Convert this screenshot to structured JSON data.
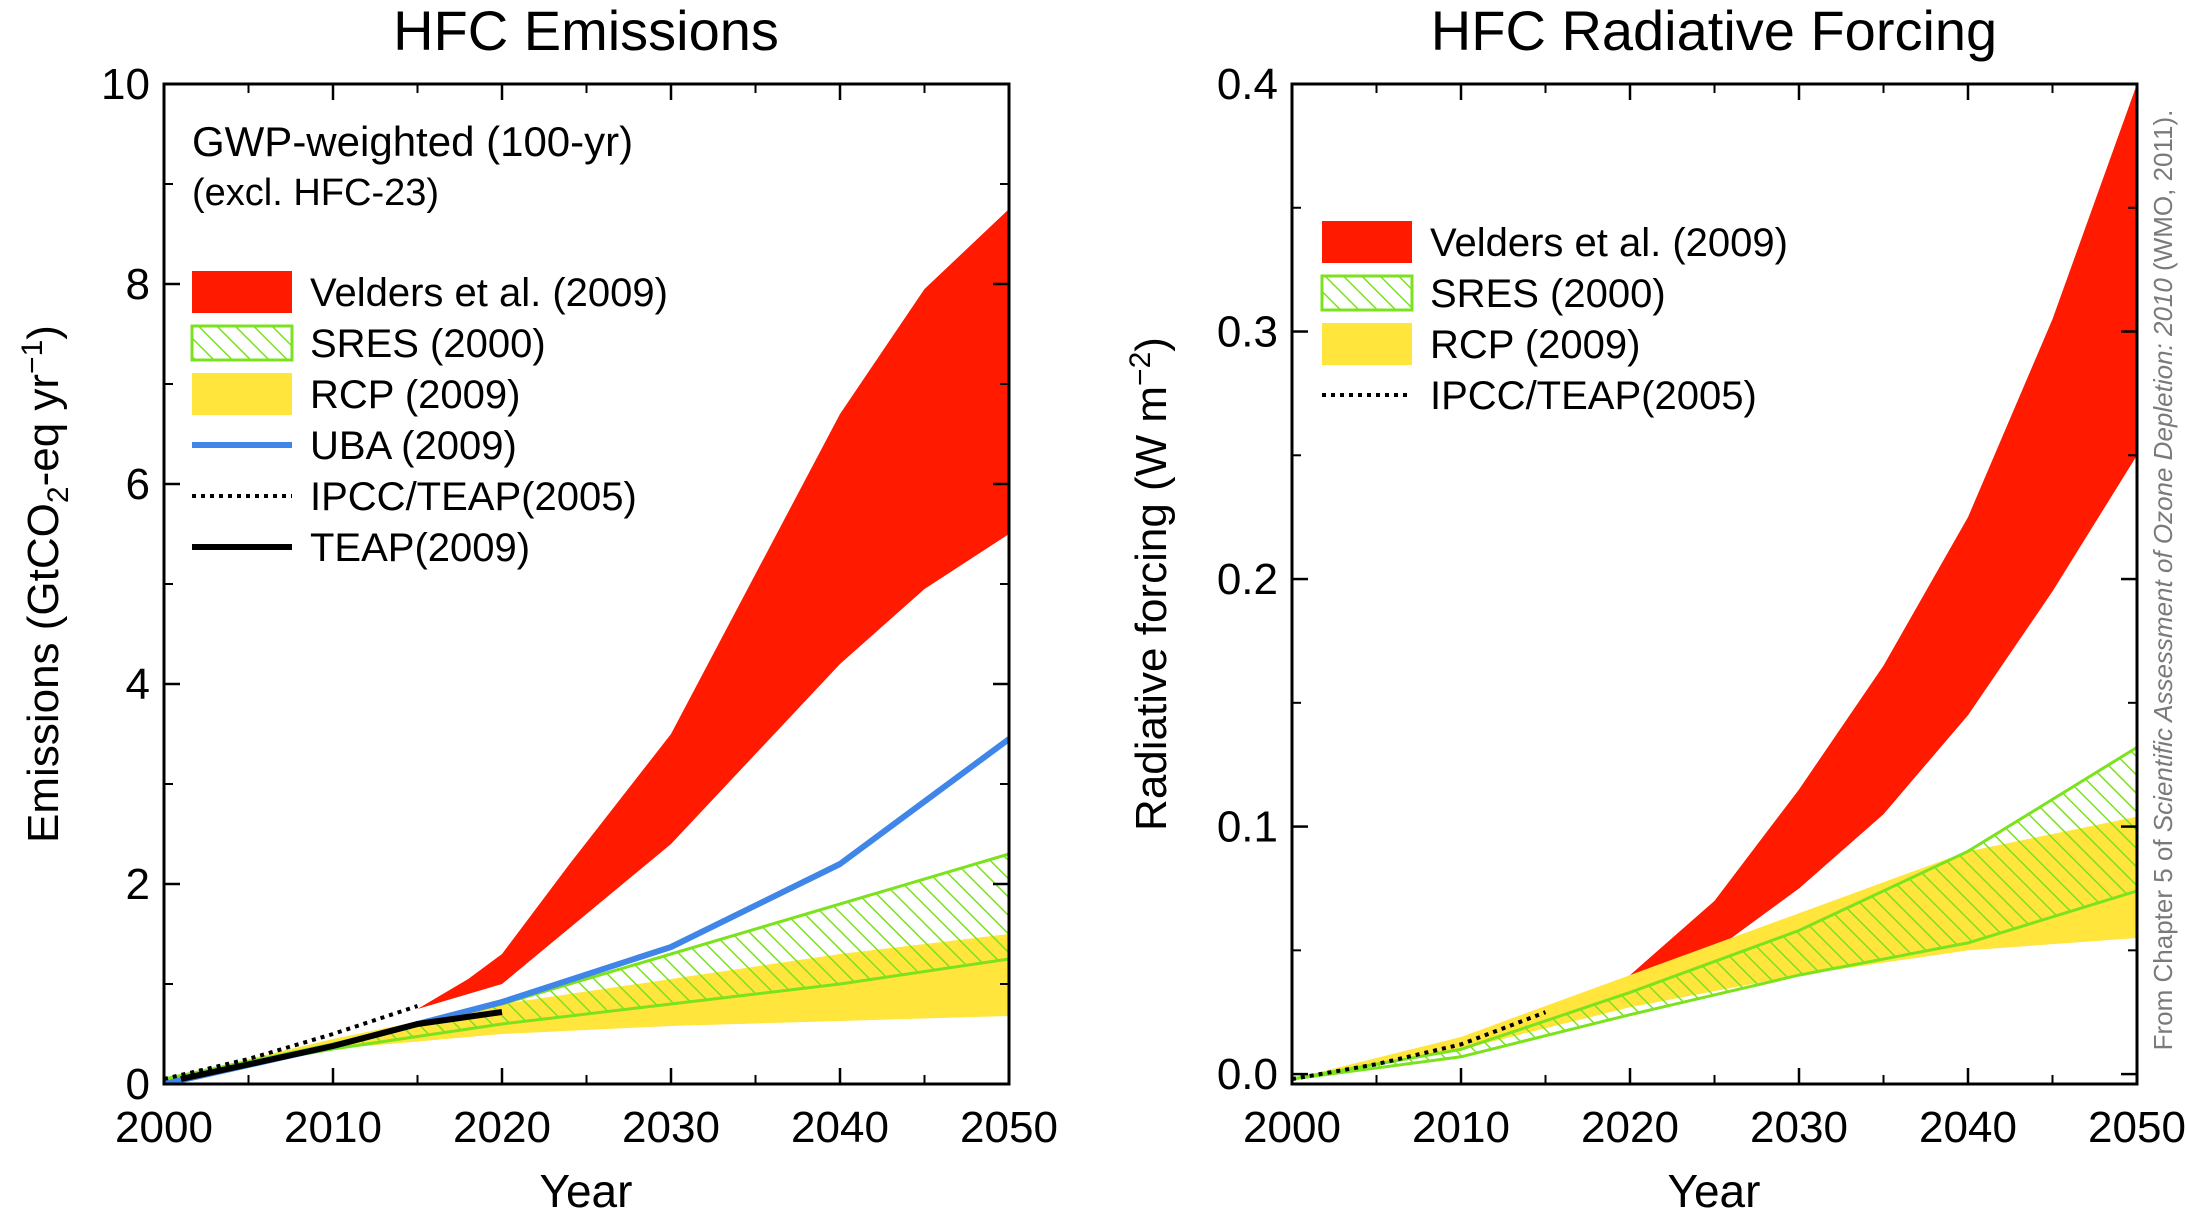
{
  "credit": {
    "prefix": "From Chapter 5 of ",
    "italic": "Scientific Assessment of Ozone Depletion: 2010",
    "suffix": " (WMO, 2011)."
  },
  "colors": {
    "velders": "#ff1a00",
    "sres": "#7be21e",
    "rcp": "#ffe53c",
    "uba": "#3f86e8",
    "ipcc": "#000000",
    "teap": "#000000"
  },
  "chart_data": [
    {
      "type": "area",
      "title": "HFC Emissions",
      "annotation": [
        "GWP-weighted (100-yr)",
        "(excl. HFC-23)"
      ],
      "xlabel": "Year",
      "ylabel": {
        "pre": "Emissions (GtCO",
        "sub": "2",
        "mid": "-eq yr",
        "sup": "−1",
        "post": ")"
      },
      "xlim": [
        2000,
        2050
      ],
      "ylim": [
        0,
        10
      ],
      "xticks": [
        2000,
        2010,
        2020,
        2030,
        2040,
        2050
      ],
      "yticks": [
        0,
        2,
        4,
        6,
        8,
        10
      ],
      "ytick_labels": [
        "0",
        "2",
        "4",
        "6",
        "8",
        "10"
      ],
      "legend": [
        {
          "label": "Velders et al. (2009)",
          "kind": "fill",
          "key": "velders"
        },
        {
          "label": "SRES (2000)",
          "kind": "hatch",
          "key": "sres"
        },
        {
          "label": "RCP (2009)",
          "kind": "fill",
          "key": "rcp"
        },
        {
          "label": "UBA (2009)",
          "kind": "line",
          "key": "uba"
        },
        {
          "label": "IPCC/TEAP(2005)",
          "kind": "dotted",
          "key": "ipcc"
        },
        {
          "label": "TEAP(2009)",
          "kind": "line",
          "key": "teap"
        }
      ],
      "bands": [
        {
          "name": "Velders et al. (2009)",
          "key": "velders",
          "style": "fill",
          "upper": [
            [
              2015,
              0.75
            ],
            [
              2018,
              1.05
            ],
            [
              2020,
              1.3
            ],
            [
              2024,
              2.2
            ],
            [
              2030,
              3.5
            ],
            [
              2040,
              6.7
            ],
            [
              2045,
              7.95
            ],
            [
              2050,
              8.75
            ]
          ],
          "lower": [
            [
              2015,
              0.75
            ],
            [
              2020,
              1.0
            ],
            [
              2025,
              1.7
            ],
            [
              2030,
              2.4
            ],
            [
              2040,
              4.2
            ],
            [
              2045,
              4.95
            ],
            [
              2050,
              5.5
            ]
          ]
        },
        {
          "name": "RCP (2009)",
          "key": "rcp",
          "style": "fill",
          "upper": [
            [
              2000,
              0.05
            ],
            [
              2010,
              0.45
            ],
            [
              2020,
              0.8
            ],
            [
              2030,
              1.05
            ],
            [
              2040,
              1.3
            ],
            [
              2050,
              1.5
            ]
          ],
          "lower": [
            [
              2000,
              0.05
            ],
            [
              2010,
              0.35
            ],
            [
              2020,
              0.5
            ],
            [
              2030,
              0.58
            ],
            [
              2040,
              0.63
            ],
            [
              2050,
              0.68
            ]
          ]
        },
        {
          "name": "SRES (2000)",
          "key": "sres",
          "style": "hatch",
          "upper": [
            [
              2000,
              0.05
            ],
            [
              2010,
              0.4
            ],
            [
              2020,
              0.8
            ],
            [
              2030,
              1.3
            ],
            [
              2040,
              1.8
            ],
            [
              2050,
              2.3
            ]
          ],
          "lower": [
            [
              2000,
              0.05
            ],
            [
              2010,
              0.35
            ],
            [
              2020,
              0.6
            ],
            [
              2030,
              0.8
            ],
            [
              2040,
              1.0
            ],
            [
              2050,
              1.25
            ]
          ]
        }
      ],
      "lines": [
        {
          "name": "UBA (2009)",
          "key": "uba",
          "style": "solid",
          "width": 6,
          "points": [
            [
              2000,
              0.0
            ],
            [
              2010,
              0.38
            ],
            [
              2020,
              0.82
            ],
            [
              2030,
              1.37
            ],
            [
              2040,
              2.2
            ],
            [
              2050,
              3.45
            ]
          ]
        },
        {
          "name": "IPCC/TEAP(2005)",
          "key": "ipcc",
          "style": "dotted",
          "width": 4,
          "points": [
            [
              2000,
              0.05
            ],
            [
              2005,
              0.25
            ],
            [
              2010,
              0.5
            ],
            [
              2015,
              0.78
            ]
          ]
        },
        {
          "name": "TEAP(2009)",
          "key": "teap",
          "style": "solid",
          "width": 6,
          "points": [
            [
              2001,
              0.05
            ],
            [
              2010,
              0.38
            ],
            [
              2015,
              0.6
            ],
            [
              2020,
              0.72
            ]
          ]
        }
      ]
    },
    {
      "type": "area",
      "title": "HFC Radiative Forcing",
      "annotation": [],
      "xlabel": "Year",
      "ylabel": {
        "pre": "Radiative forcing (W m",
        "sub": "",
        "mid": "",
        "sup": "−2",
        "post": ")"
      },
      "xlim": [
        2000,
        2050
      ],
      "ylim": [
        -0.004,
        0.4
      ],
      "xticks": [
        2000,
        2010,
        2020,
        2030,
        2040,
        2050
      ],
      "yticks": [
        0,
        0.1,
        0.2,
        0.3,
        0.4
      ],
      "ytick_labels": [
        "0.0",
        "0.1",
        "0.2",
        "0.3",
        "0.4"
      ],
      "legend": [
        {
          "label": "Velders et al. (2009)",
          "kind": "fill",
          "key": "velders"
        },
        {
          "label": "SRES (2000)",
          "kind": "hatch",
          "key": "sres"
        },
        {
          "label": "RCP (2009)",
          "kind": "fill",
          "key": "rcp"
        },
        {
          "label": "IPCC/TEAP(2005)",
          "kind": "dotted",
          "key": "ipcc"
        }
      ],
      "bands": [
        {
          "name": "Velders et al. (2009)",
          "key": "velders",
          "style": "fill",
          "upper": [
            [
              2010,
              0.012
            ],
            [
              2015,
              0.024
            ],
            [
              2020,
              0.04
            ],
            [
              2025,
              0.07
            ],
            [
              2030,
              0.115
            ],
            [
              2035,
              0.165
            ],
            [
              2040,
              0.225
            ],
            [
              2045,
              0.305
            ],
            [
              2050,
              0.4
            ]
          ],
          "lower": [
            [
              2010,
              0.012
            ],
            [
              2015,
              0.024
            ],
            [
              2020,
              0.035
            ],
            [
              2025,
              0.05
            ],
            [
              2030,
              0.075
            ],
            [
              2035,
              0.105
            ],
            [
              2040,
              0.145
            ],
            [
              2045,
              0.195
            ],
            [
              2050,
              0.25
            ]
          ]
        },
        {
          "name": "RCP (2009)",
          "key": "rcp",
          "style": "fill",
          "upper": [
            [
              2000,
              -0.002
            ],
            [
              2010,
              0.015
            ],
            [
              2020,
              0.04
            ],
            [
              2030,
              0.065
            ],
            [
              2040,
              0.09
            ],
            [
              2050,
              0.104
            ]
          ],
          "lower": [
            [
              2000,
              -0.002
            ],
            [
              2010,
              0.01
            ],
            [
              2020,
              0.027
            ],
            [
              2030,
              0.04
            ],
            [
              2040,
              0.05
            ],
            [
              2050,
              0.055
            ]
          ]
        },
        {
          "name": "SRES (2000)",
          "key": "sres",
          "style": "hatch",
          "upper": [
            [
              2000,
              -0.002
            ],
            [
              2010,
              0.01
            ],
            [
              2020,
              0.033
            ],
            [
              2030,
              0.058
            ],
            [
              2040,
              0.09
            ],
            [
              2050,
              0.132
            ]
          ],
          "lower": [
            [
              2000,
              -0.002
            ],
            [
              2010,
              0.007
            ],
            [
              2020,
              0.024
            ],
            [
              2030,
              0.04
            ],
            [
              2040,
              0.053
            ],
            [
              2050,
              0.074
            ]
          ]
        }
      ],
      "lines": [
        {
          "name": "IPCC/TEAP(2005)",
          "key": "ipcc",
          "style": "dotted",
          "width": 4,
          "points": [
            [
              2000,
              -0.002
            ],
            [
              2005,
              0.004
            ],
            [
              2010,
              0.012
            ],
            [
              2015,
              0.025
            ]
          ]
        }
      ]
    }
  ]
}
